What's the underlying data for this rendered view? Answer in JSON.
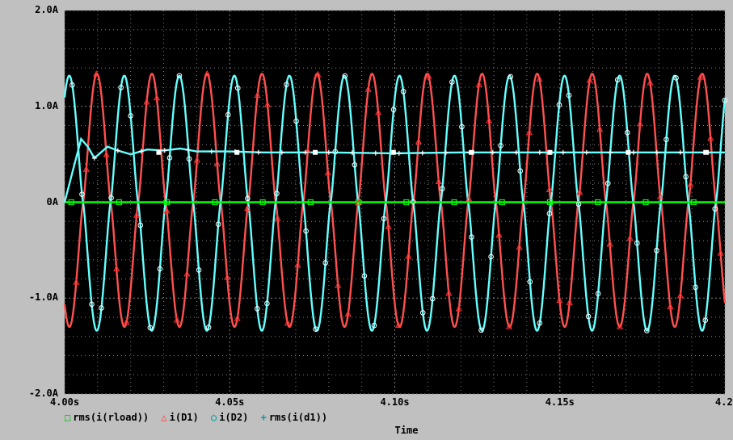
{
  "chart_data": {
    "type": "line",
    "xlabel": "Time",
    "ylabel": "",
    "xlim": [
      4.0,
      4.2
    ],
    "ylim": [
      -2.0,
      2.0
    ],
    "x_ticks": [
      "4.00s",
      "4.05s",
      "4.10s",
      "4.15s",
      "4.2"
    ],
    "y_ticks": [
      "2.0A",
      "1.0A",
      "0A",
      "-1.0A",
      "-2.0A"
    ],
    "grid": true,
    "legend_position": "bottom-left",
    "background": "#000000",
    "series": [
      {
        "name": "rms(i(rload))",
        "marker": "square",
        "color": "#00ff00",
        "marker_color": "#00ff00",
        "description_value": 0.0
      },
      {
        "name": "i(D1)",
        "marker": "triangle",
        "color": "#ff5050",
        "marker_color": "#ff3333",
        "peak": 1.34,
        "trough": -1.3,
        "period_s": 0.01667,
        "phase_s": 0.0048
      },
      {
        "name": "i(D2)",
        "marker": "circle",
        "color": "#66ffff",
        "marker_color": "#66ffff",
        "peak": 1.32,
        "trough": -1.34,
        "period_s": 0.01667,
        "phase_s": 0.0131
      },
      {
        "name": "rms(i(d1))",
        "marker": "plus",
        "color": "#66ffff",
        "marker_color": "#ffffff",
        "x": [
          4.0,
          4.003,
          4.005,
          4.007,
          4.009,
          4.011,
          4.013,
          4.016,
          4.02,
          4.025,
          4.03,
          4.035,
          4.04,
          4.05,
          4.06,
          4.08,
          4.1,
          4.12,
          4.15,
          4.2
        ],
        "y": [
          0.0,
          0.4,
          0.66,
          0.58,
          0.46,
          0.52,
          0.58,
          0.54,
          0.5,
          0.55,
          0.54,
          0.56,
          0.53,
          0.53,
          0.52,
          0.52,
          0.51,
          0.52,
          0.52,
          0.52
        ]
      }
    ]
  },
  "legend": {
    "item1": "rms(i(rload))",
    "item2": "i(D1)",
    "item3": "i(D2)",
    "item4": "rms(i(d1))",
    "marker1": "□",
    "marker2": "△",
    "marker3": "○",
    "marker4": "+"
  }
}
